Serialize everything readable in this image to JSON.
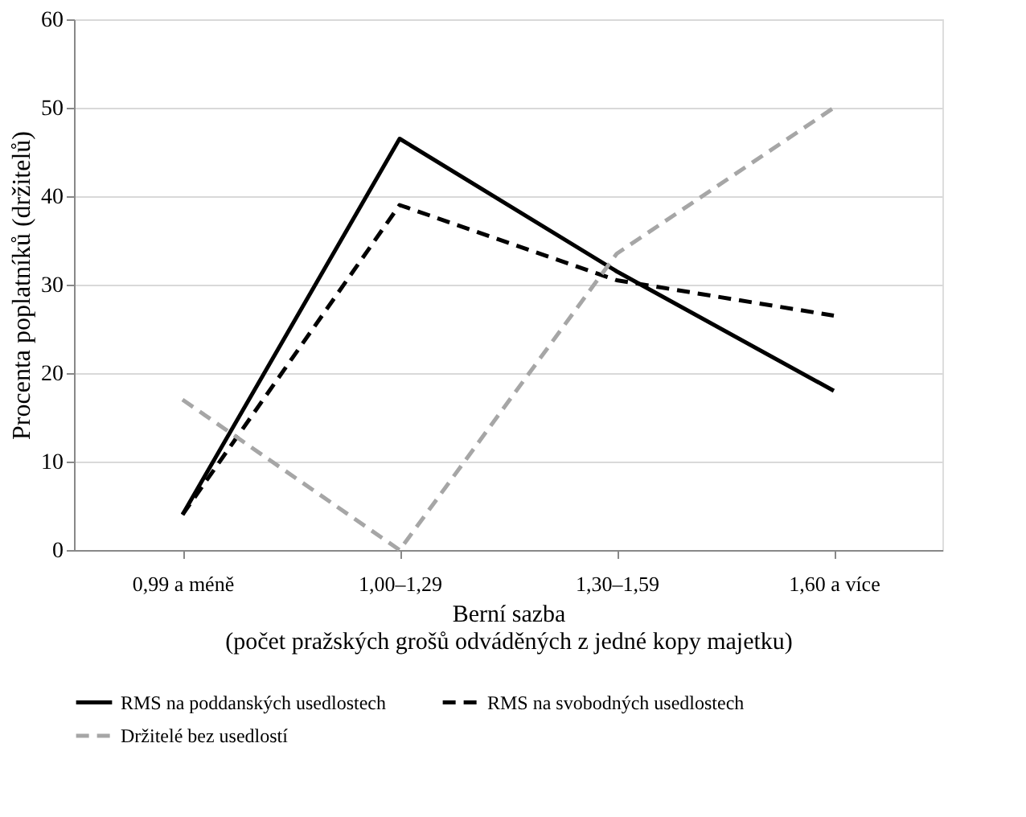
{
  "chart_data": {
    "type": "line",
    "xlabel": "Berní sazba\n(počet pražských grošů odváděných z jedné kopy majetku)",
    "ylabel": "Procenta poplatníků (držitelů)",
    "categories": [
      "0,99 a méně",
      "1,00–1,29",
      "1,30–1,59",
      "1,60 a více"
    ],
    "series": [
      {
        "name": "RMS na poddanských usedlostech",
        "color": "#000000",
        "line_style": "solid",
        "values": [
          4,
          46.5,
          31.5,
          18
        ]
      },
      {
        "name": "RMS na svobodných usedlostech",
        "color": "#000000",
        "line_style": "dashed",
        "values": [
          4,
          39,
          30.5,
          26.5
        ]
      },
      {
        "name": "Držitelé bez usedlostí",
        "color": "#a6a6a6",
        "line_style": "dashed",
        "values": [
          17,
          0,
          33.5,
          50
        ]
      }
    ],
    "ylim": [
      0,
      60
    ],
    "yticks": [
      0,
      10,
      20,
      30,
      40,
      50,
      60
    ],
    "grid": "y",
    "legend": "bottom",
    "marker": "none"
  }
}
